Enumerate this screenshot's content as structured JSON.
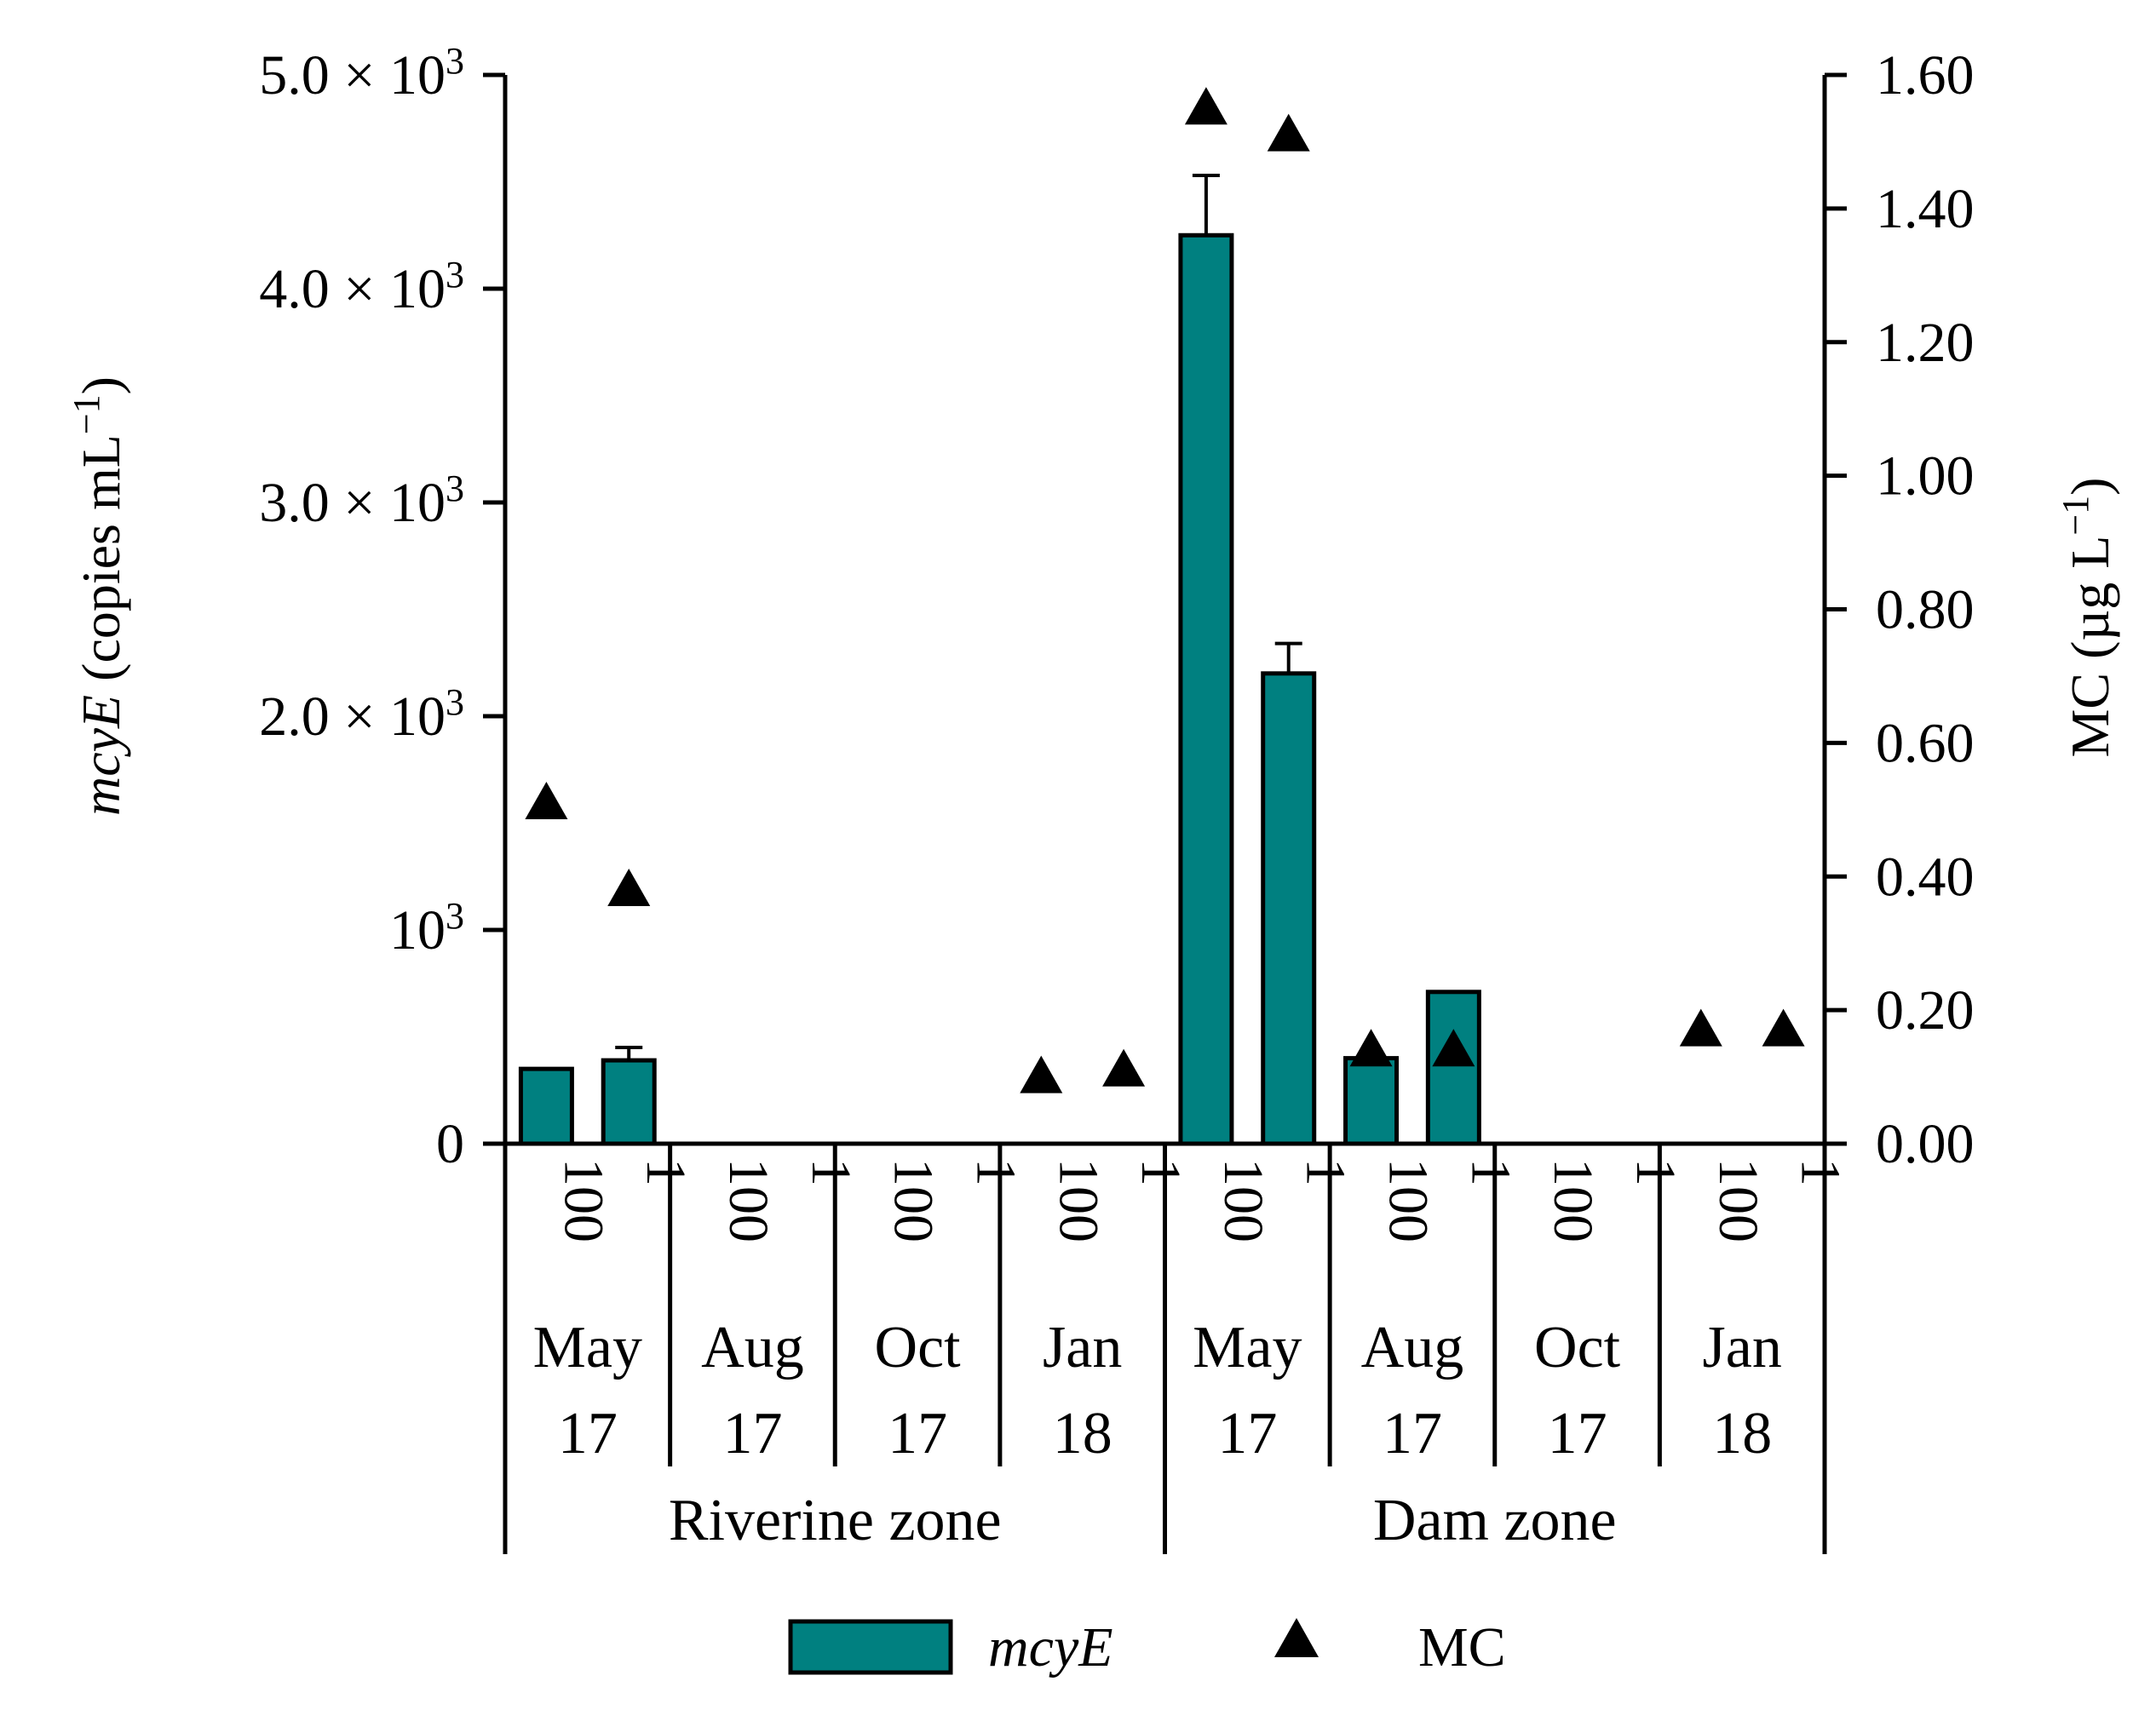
{
  "chart_data": {
    "type": "bar",
    "colors": {
      "bar": "#008080",
      "edge": "#000000",
      "marker": "#000000"
    },
    "left_axis": {
      "label_italic": "mcyE",
      "label_rest": " (copies mL",
      "label_sup": "−1",
      "label_close": ")",
      "ylim": [
        0,
        5000
      ],
      "ticks": [
        {
          "value": 0,
          "label": "0"
        },
        {
          "value": 1000,
          "label": "10",
          "sup": "3"
        },
        {
          "value": 2000,
          "label": "2.0 × 10",
          "sup": "3"
        },
        {
          "value": 3000,
          "label": "3.0 × 10",
          "sup": "3"
        },
        {
          "value": 4000,
          "label": "4.0 × 10",
          "sup": "3"
        },
        {
          "value": 5000,
          "label": "5.0 × 10",
          "sup": "3"
        }
      ]
    },
    "right_axis": {
      "label_rest": "MC (µg L",
      "label_sup": "−1",
      "label_close": ")",
      "ylim": [
        0,
        1.6
      ],
      "ticks": [
        "0.00",
        "0.20",
        "0.40",
        "0.60",
        "0.80",
        "1.00",
        "1.20",
        "1.40",
        "1.60"
      ]
    },
    "categories": [
      {
        "zone": "Riverine zone",
        "month": "May",
        "year": "17",
        "depth": "100"
      },
      {
        "zone": "Riverine zone",
        "month": "May",
        "year": "17",
        "depth": "1"
      },
      {
        "zone": "Riverine zone",
        "month": "Aug",
        "year": "17",
        "depth": "100"
      },
      {
        "zone": "Riverine zone",
        "month": "Aug",
        "year": "17",
        "depth": "1"
      },
      {
        "zone": "Riverine zone",
        "month": "Oct",
        "year": "17",
        "depth": "100"
      },
      {
        "zone": "Riverine zone",
        "month": "Oct",
        "year": "17",
        "depth": "1"
      },
      {
        "zone": "Riverine zone",
        "month": "Jan",
        "year": "18",
        "depth": "100"
      },
      {
        "zone": "Riverine zone",
        "month": "Jan",
        "year": "18",
        "depth": "1"
      },
      {
        "zone": "Dam zone",
        "month": "May",
        "year": "17",
        "depth": "100"
      },
      {
        "zone": "Dam zone",
        "month": "May",
        "year": "17",
        "depth": "1"
      },
      {
        "zone": "Dam zone",
        "month": "Aug",
        "year": "17",
        "depth": "100"
      },
      {
        "zone": "Dam zone",
        "month": "Aug",
        "year": "17",
        "depth": "1"
      },
      {
        "zone": "Dam zone",
        "month": "Oct",
        "year": "17",
        "depth": "100"
      },
      {
        "zone": "Dam zone",
        "month": "Oct",
        "year": "17",
        "depth": "1"
      },
      {
        "zone": "Dam zone",
        "month": "Jan",
        "year": "18",
        "depth": "100"
      },
      {
        "zone": "Dam zone",
        "month": "Jan",
        "year": "18",
        "depth": "1"
      }
    ],
    "periods": [
      {
        "month": "May",
        "year": "17"
      },
      {
        "month": "Aug",
        "year": "17"
      },
      {
        "month": "Oct",
        "year": "17"
      },
      {
        "month": "Jan",
        "year": "18"
      },
      {
        "month": "May",
        "year": "17"
      },
      {
        "month": "Aug",
        "year": "17"
      },
      {
        "month": "Oct",
        "year": "17"
      },
      {
        "month": "Jan",
        "year": "18"
      }
    ],
    "zones": [
      "Riverine zone",
      "Dam zone"
    ],
    "series": [
      {
        "name": "mcyE",
        "type": "bar",
        "axis": "left",
        "values": [
          350,
          390,
          0,
          0,
          0,
          0,
          0,
          0,
          4250,
          2200,
          400,
          710,
          0,
          0,
          0,
          0
        ],
        "errors": [
          0,
          60,
          0,
          0,
          0,
          0,
          0,
          0,
          280,
          140,
          0,
          0,
          0,
          0,
          0,
          0
        ]
      },
      {
        "name": "MC",
        "type": "scatter",
        "axis": "right",
        "marker": "triangle",
        "values": [
          0.51,
          0.38,
          null,
          null,
          null,
          null,
          0.1,
          0.11,
          1.55,
          1.51,
          0.14,
          0.14,
          null,
          null,
          0.17,
          0.17
        ]
      }
    ],
    "legend": {
      "position": "bottom-center",
      "items": [
        {
          "name": "mcyE",
          "italic": true,
          "symbol": "bar"
        },
        {
          "name": "MC",
          "italic": false,
          "symbol": "triangle"
        }
      ]
    }
  }
}
